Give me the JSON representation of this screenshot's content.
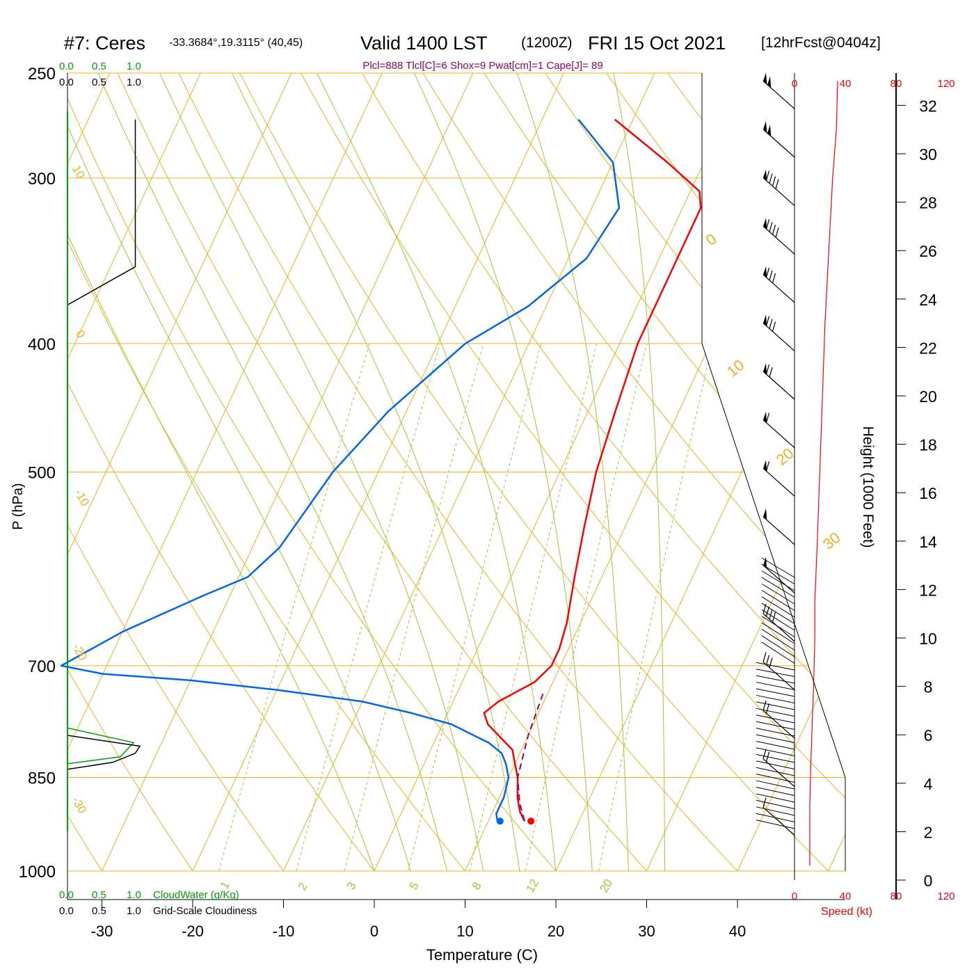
{
  "title": {
    "station": "#7: Ceres",
    "coords": "-33.3684°,19.3115° (40,45)",
    "valid": "Valid 1400 LST",
    "zulu": "(1200Z)",
    "date": "FRI 15 Oct 2021",
    "forecast": "[12hrFcst@0404z]"
  },
  "indices": "Plcl=888 Tlcl[C]=6 Shox=9 Pwat[cm]=1 Cape[J]= 89",
  "top_scale_green": [
    "0.0",
    "0.5",
    "1.0"
  ],
  "top_scale_black": [
    "0.0",
    "0.5",
    "1.0"
  ],
  "bottom_cloudwater": {
    "ticks": [
      "0.0",
      "0.5",
      "1.0"
    ],
    "label": "CloudWater (g/Kg)"
  },
  "bottom_cloudiness": {
    "ticks": [
      "0.0",
      "0.5",
      "1.0"
    ],
    "label": "Grid-Scale Cloudiness"
  },
  "speed_ticks_top": [
    "0",
    "40",
    "80",
    "120"
  ],
  "speed_ticks_bottom": [
    "0",
    "40",
    "80",
    "120"
  ],
  "speed_label": "Speed (kt)",
  "colors": {
    "isotherm": "#f0b020",
    "dry_adiabat": "#99cc33",
    "mixing_ratio": "#99cc33",
    "temperature": "#ff0000",
    "dewpoint": "#0066ee",
    "parcel": "#990066",
    "cloud_water": "#00a000",
    "indices_text": "#990066",
    "speed": "#ff0000"
  },
  "chart_data": {
    "type": "line",
    "subtype": "skew-T log-P sounding",
    "xlabel": "Temperature (C)",
    "ylabel": "P (hPa)",
    "y2label": "Height (1000 Feet)",
    "x_ticks": [
      -30,
      -20,
      -10,
      0,
      10,
      20,
      30,
      40
    ],
    "p_ticks": [
      250,
      300,
      400,
      500,
      700,
      850,
      1000
    ],
    "height_ticks": [
      0,
      2,
      4,
      6,
      8,
      10,
      12,
      14,
      16,
      18,
      20,
      22,
      24,
      26,
      28,
      30,
      32
    ],
    "xlim": [
      -34,
      36
    ],
    "plim": [
      250,
      1000
    ],
    "y_scale": "log",
    "grid": true,
    "isotherm_labels": [
      "0",
      "10",
      "20",
      "30"
    ],
    "potential_temperature_labels": [
      "10",
      "0",
      "-10",
      "-20",
      "-30"
    ],
    "mixing_ratio_labels": [
      "1",
      "2",
      "3",
      "5",
      "8",
      "12",
      "20"
    ],
    "series": [
      {
        "name": "temperature",
        "points": [
          [
            271,
            -12
          ],
          [
            292,
            -4
          ],
          [
            307,
            1
          ],
          [
            316,
            2
          ],
          [
            370,
            2
          ],
          [
            400,
            2
          ],
          [
            450,
            3
          ],
          [
            500,
            4
          ],
          [
            550,
            5.5
          ],
          [
            600,
            7
          ],
          [
            650,
            8.5
          ],
          [
            680,
            9
          ],
          [
            700,
            9
          ],
          [
            720,
            8
          ],
          [
            745,
            5
          ],
          [
            760,
            4
          ],
          [
            775,
            5
          ],
          [
            810,
            9
          ],
          [
            830,
            10
          ],
          [
            850,
            11
          ],
          [
            880,
            12
          ],
          [
            902,
            13
          ],
          [
            917,
            14
          ]
        ],
        "surface_point": [
          917,
          14.7
        ]
      },
      {
        "name": "dewpoint",
        "points": [
          [
            271,
            -16
          ],
          [
            292,
            -10
          ],
          [
            316,
            -7
          ],
          [
            345,
            -8
          ],
          [
            375,
            -12
          ],
          [
            400,
            -17
          ],
          [
            450,
            -22
          ],
          [
            500,
            -25
          ],
          [
            570,
            -27
          ],
          [
            600,
            -29
          ],
          [
            620,
            -33
          ],
          [
            660,
            -40
          ],
          [
            700,
            -45
          ],
          [
            710,
            -40
          ],
          [
            718,
            -30
          ],
          [
            730,
            -20
          ],
          [
            745,
            -10
          ],
          [
            760,
            -4
          ],
          [
            775,
            1
          ],
          [
            790,
            4
          ],
          [
            800,
            6
          ],
          [
            815,
            8
          ],
          [
            830,
            9
          ],
          [
            850,
            10
          ],
          [
            880,
            10.5
          ],
          [
            905,
            10.5
          ],
          [
            917,
            11
          ]
        ],
        "surface_point": [
          917,
          11.3
        ]
      },
      {
        "name": "parcel",
        "points": [
          [
            735,
            9.5
          ],
          [
            790,
            10
          ],
          [
            850,
            11
          ],
          [
            888,
            12.5
          ],
          [
            917,
            14
          ]
        ]
      },
      {
        "name": "cloud_water",
        "points": [
          [
            780,
            0
          ],
          [
            800,
            0.5
          ],
          [
            820,
            0.4
          ],
          [
            830,
            0
          ]
        ]
      },
      {
        "name": "cloudiness",
        "points": [
          [
            271,
            0.75
          ],
          [
            350,
            0.75
          ],
          [
            374,
            0
          ],
          [
            790,
            0
          ],
          [
            805,
            0.8
          ],
          [
            815,
            0.75
          ],
          [
            828,
            0.5
          ],
          [
            838,
            0
          ]
        ]
      },
      {
        "name": "wind_speed",
        "points": [
          [
            0.6,
            12
          ],
          [
            3,
            12
          ],
          [
            5,
            13
          ],
          [
            6.5,
            14
          ],
          [
            8,
            15
          ],
          [
            10,
            16
          ],
          [
            11.5,
            16
          ],
          [
            14,
            18
          ],
          [
            17,
            20
          ],
          [
            20,
            22
          ],
          [
            23,
            24
          ],
          [
            26,
            27
          ],
          [
            29,
            30
          ],
          [
            31,
            33
          ],
          [
            33,
            34
          ]
        ]
      }
    ],
    "wind_barbs": {
      "height_kft": [
        32,
        30,
        28,
        26,
        24,
        22,
        20,
        18,
        16,
        14,
        12,
        10,
        8,
        6,
        4,
        2
      ],
      "speed_kt": [
        105,
        100,
        95,
        90,
        85,
        80,
        70,
        65,
        60,
        55,
        50,
        40,
        30,
        25,
        20,
        15
      ]
    }
  }
}
